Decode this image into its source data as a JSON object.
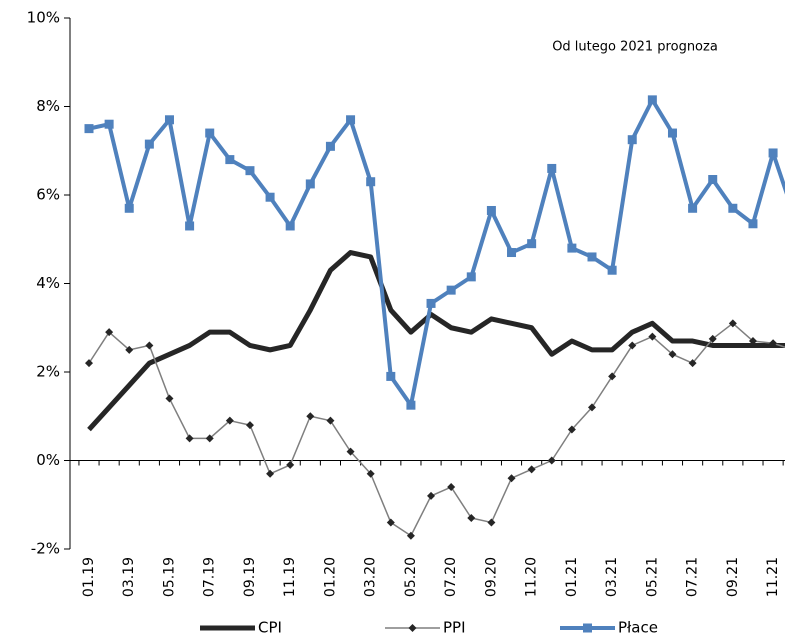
{
  "chart_data": {
    "type": "line",
    "annotation": "Od lutego 2021 prognoza",
    "categories": [
      "01.19",
      null,
      "03.19",
      null,
      "05.19",
      null,
      "07.19",
      null,
      "09.19",
      null,
      "11.19",
      null,
      "01.20",
      null,
      "03.20",
      null,
      "05.20",
      null,
      "07.20",
      null,
      "09.20",
      null,
      "11.20",
      null,
      "01.21",
      null,
      "03.21",
      null,
      "05.21",
      null,
      "07.21",
      null,
      "09.21",
      null,
      "11.21",
      null
    ],
    "series": [
      {
        "name": "CPI",
        "color": "#262626",
        "marker": "none",
        "line_width": 5,
        "values": [
          0.7,
          1.2,
          1.7,
          2.2,
          2.4,
          2.6,
          2.9,
          2.9,
          2.6,
          2.5,
          2.6,
          3.4,
          4.3,
          4.7,
          4.6,
          3.4,
          2.9,
          3.3,
          3.0,
          2.9,
          3.2,
          3.1,
          3.0,
          2.4,
          2.7,
          2.5,
          2.5,
          2.9,
          3.1,
          2.7,
          2.7,
          2.6,
          2.6,
          2.6,
          2.6,
          2.6
        ]
      },
      {
        "name": "PPI",
        "color": "#7f7f7f",
        "marker": "diamond",
        "marker_color": "#262626",
        "line_width": 1.5,
        "values": [
          2.2,
          2.9,
          2.5,
          2.6,
          1.4,
          0.5,
          0.5,
          0.9,
          0.8,
          -0.3,
          -0.1,
          1.0,
          0.9,
          0.2,
          -0.3,
          -1.4,
          -1.7,
          -0.8,
          -0.6,
          -1.3,
          -1.4,
          -0.4,
          -0.2,
          0.0,
          0.7,
          1.2,
          1.9,
          2.6,
          2.8,
          2.4,
          2.2,
          2.75,
          3.1,
          2.7,
          2.65,
          2.5
        ]
      },
      {
        "name": "Płace",
        "color": "#4f81bd",
        "marker": "square",
        "marker_color": "#4f81bd",
        "line_width": 4,
        "values": [
          7.5,
          7.6,
          5.7,
          7.15,
          7.7,
          5.3,
          7.4,
          6.8,
          6.55,
          5.95,
          5.3,
          6.25,
          7.1,
          7.7,
          6.3,
          1.9,
          1.25,
          3.55,
          3.85,
          4.15,
          5.65,
          4.7,
          4.9,
          6.6,
          4.8,
          4.6,
          4.3,
          7.25,
          8.15,
          7.4,
          5.7,
          6.35,
          5.7,
          5.35,
          6.95,
          5.6
        ]
      }
    ],
    "ylim": [
      -2,
      10
    ],
    "yticks": [
      {
        "value": -2,
        "label": "-2%"
      },
      {
        "value": 0,
        "label": "0%"
      },
      {
        "value": 2,
        "label": "2%"
      },
      {
        "value": 4,
        "label": "4%"
      },
      {
        "value": 6,
        "label": "6%"
      },
      {
        "value": 8,
        "label": "8%"
      },
      {
        "value": 10,
        "label": "10%"
      }
    ],
    "grid": false,
    "legend": "bottom"
  }
}
